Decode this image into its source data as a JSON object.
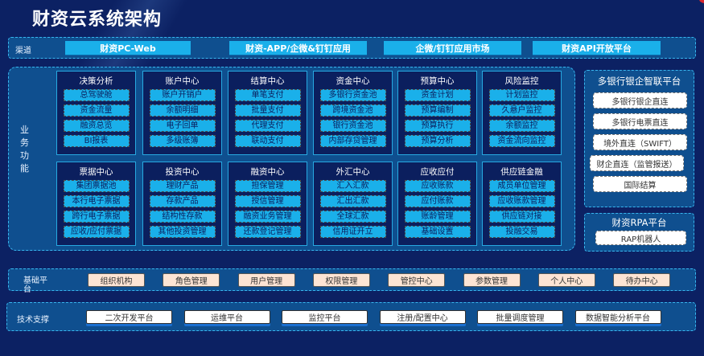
{
  "title": "财资云系统架构",
  "channel": {
    "label": "渠道",
    "items": [
      "财资PC-Web",
      "财资-APP/企微&钉钉应用",
      "企微/钉钉应用市场",
      "财资API开放平台"
    ]
  },
  "business": {
    "label": "业务功能",
    "modules": [
      {
        "title": "决策分析",
        "items": [
          "总驾驶舱",
          "资金流量",
          "融资总览",
          "BI报表"
        ]
      },
      {
        "title": "账户中心",
        "items": [
          "账户开销户",
          "余额明细",
          "电子回单",
          "多级账簿"
        ]
      },
      {
        "title": "结算中心",
        "items": [
          "单笔支付",
          "批量支付",
          "代理支付",
          "联动支付"
        ]
      },
      {
        "title": "资金中心",
        "items": [
          "多银行资金池",
          "跨境资金池",
          "银行资金池",
          "内部存贷管理"
        ]
      },
      {
        "title": "预算中心",
        "items": [
          "资金计划",
          "预算编制",
          "预算执行",
          "预算分析"
        ]
      },
      {
        "title": "风险监控",
        "items": [
          "计划监控",
          "久悬户监控",
          "余额监控",
          "资金流向监控"
        ]
      },
      {
        "title": "票据中心",
        "items": [
          "集团票据池",
          "本行电子票据",
          "跨行电子票据",
          "应收/应付票据"
        ]
      },
      {
        "title": "投资中心",
        "items": [
          "理财产品",
          "存款产品",
          "结构性存款",
          "其他投资管理"
        ]
      },
      {
        "title": "融资中心",
        "items": [
          "担保管理",
          "授信管理",
          "融资业务管理",
          "还款登记管理"
        ]
      },
      {
        "title": "外汇中心",
        "items": [
          "汇入汇款",
          "汇出汇款",
          "全球汇款",
          "信用证开立"
        ]
      },
      {
        "title": "应收应付",
        "items": [
          "应收账款",
          "应付账款",
          "账龄管理",
          "基础设置"
        ]
      },
      {
        "title": "供应链金融",
        "items": [
          "成员单位管理",
          "应收账款管理",
          "供应链对接",
          "投融交易"
        ]
      }
    ]
  },
  "bank": {
    "title": "多银行银企智联平台",
    "items": [
      "多银行银企直连",
      "多银行电票直连",
      "境外直连（SWIFT）",
      "财企直连（监管报送）",
      "国际结算"
    ]
  },
  "rpa": {
    "title": "财资RPA平台",
    "items": [
      "RAP机器人"
    ]
  },
  "base": {
    "label": "基础平台",
    "items": [
      "组织机构",
      "角色管理",
      "用户管理",
      "权限管理",
      "管控中心",
      "参数管理",
      "个人中心",
      "待办中心"
    ]
  },
  "tech": {
    "label": "技术支撑",
    "items": [
      "二次开发平台",
      "运维平台",
      "监控平台",
      "注册/配置中心",
      "批量调度管理",
      "数据智能分析平台"
    ]
  }
}
